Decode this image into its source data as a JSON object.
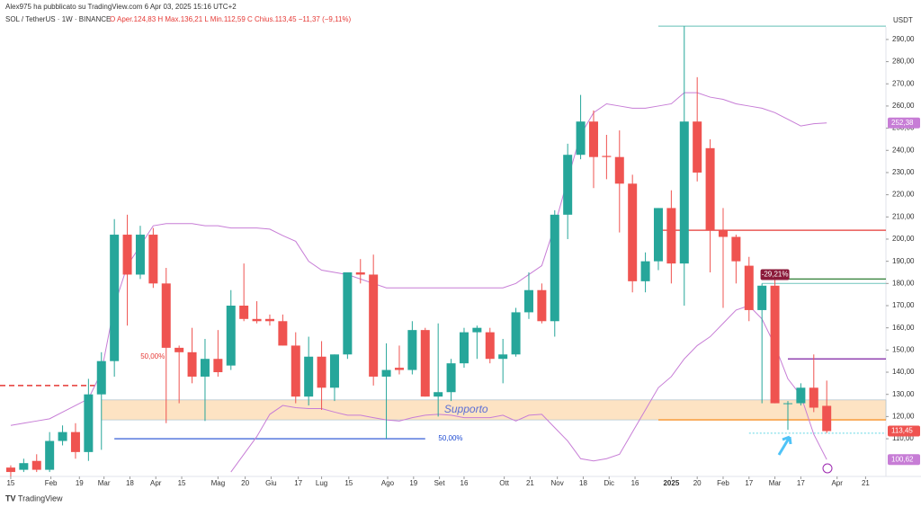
{
  "chart_data": {
    "type": "candlestick",
    "title": "Alex975 ha pubblicato su TradingView.com 6 Apr 03, 2025 15:16 UTC+2",
    "subtitle": "SOL / TetherUS · 1W · BINANCE",
    "info": "O Aper.124,83  H Max.136,21  L Min.112,59  C Chius.113,45  −11,37 (−9,11%)",
    "currency": "USDT",
    "brand": "TradingView",
    "up_color": "#26a69a",
    "down_color": "#ef5350",
    "candles": {
      "open": [
        97,
        96,
        100,
        96,
        109,
        113,
        104,
        130,
        145,
        202,
        184,
        202,
        180,
        151,
        149,
        138,
        146,
        143,
        170,
        164,
        164,
        163,
        152,
        129,
        147,
        133,
        148,
        185,
        184,
        138,
        142,
        141,
        159,
        129,
        131,
        144,
        158,
        158,
        146,
        148,
        167,
        177,
        163,
        211,
        238,
        253,
        237.5,
        237,
        225,
        181,
        190,
        214,
        189,
        253,
        241,
        204,
        201,
        188,
        168,
        179,
        126,
        126,
        133,
        124.83
      ],
      "high": [
        98,
        101,
        103,
        113,
        116,
        117,
        137,
        149,
        209,
        211,
        206,
        205,
        187,
        152,
        160,
        155,
        159,
        177,
        189,
        172,
        166,
        166,
        158,
        156,
        154,
        148,
        185,
        191,
        193,
        153,
        152,
        163,
        160,
        162,
        146,
        160,
        161,
        160,
        155,
        169,
        185,
        180,
        213,
        243,
        265,
        258,
        247,
        249,
        229,
        194,
        214,
        222,
        296,
        273,
        245,
        214,
        202,
        192,
        180,
        183,
        127,
        135,
        148,
        136.21
      ],
      "low": [
        93,
        95,
        95,
        95,
        107,
        101,
        100,
        105,
        138,
        161,
        182,
        178,
        117,
        126,
        135,
        118,
        138,
        141,
        163,
        162,
        161,
        152,
        126,
        125,
        123,
        127,
        146,
        180,
        134,
        110,
        139,
        139,
        129,
        120,
        127,
        142,
        146,
        144,
        135,
        147,
        164,
        162,
        156,
        200,
        236,
        223,
        227,
        203,
        176,
        176,
        186,
        180,
        170,
        226,
        185,
        169,
        180,
        163,
        126,
        126,
        114,
        125,
        122,
        112.59
      ],
      "close": [
        95,
        99,
        96,
        109,
        113,
        104,
        130,
        145,
        202,
        184,
        202,
        180,
        151,
        149,
        138,
        146,
        140,
        170,
        164,
        163,
        163,
        152,
        129,
        147,
        133,
        148,
        185,
        184,
        138,
        141,
        141,
        159,
        129,
        131,
        144,
        158,
        160,
        146,
        148,
        167,
        177,
        163,
        211,
        238,
        253,
        237,
        237,
        225,
        181,
        190,
        214,
        189,
        253,
        230,
        204,
        201,
        190,
        168,
        179,
        126,
        126,
        133,
        124,
        113.45
      ]
    },
    "last_label": "113,45",
    "bands": [
      {
        "color": "#c77dd6",
        "last_label": "252,38",
        "values": [
          116,
          117,
          118,
          119,
          122,
          125,
          128,
          140,
          170,
          188,
          197,
          206,
          207,
          207,
          207,
          206,
          206,
          205,
          205,
          205,
          204.5,
          201.6,
          199,
          190,
          186,
          185,
          184,
          182,
          180,
          178,
          178,
          178,
          178,
          178,
          178,
          178,
          178,
          178,
          178,
          180,
          184,
          188,
          206,
          227,
          247,
          257,
          261,
          260,
          259,
          259,
          260,
          261,
          266,
          266,
          264,
          263,
          261,
          260,
          259,
          257,
          254,
          251,
          252,
          252.38
        ]
      },
      {
        "color": "#c77dd6",
        "last_label": "100,62",
        "values": [
          null,
          null,
          null,
          null,
          null,
          null,
          null,
          null,
          null,
          null,
          null,
          null,
          null,
          null,
          null,
          null,
          null,
          95,
          103,
          111,
          121,
          125,
          124,
          123.6,
          123.6,
          122,
          120.6,
          120.6,
          119.5,
          118.5,
          118,
          119.5,
          120.6,
          121,
          120.6,
          119.5,
          119.5,
          119.5,
          120.6,
          118,
          120.6,
          121,
          115,
          109,
          101,
          100,
          101,
          103,
          113,
          123,
          133,
          138,
          146,
          152,
          156,
          162,
          168,
          170,
          164,
          152,
          137,
          129.5,
          112,
          100.62
        ]
      }
    ],
    "levels": [
      {
        "value": 134,
        "color": "#e53935",
        "style": "dashed",
        "x_range": [
          -0.83,
          7
        ]
      },
      {
        "value": 110,
        "color": "#1e4bd2",
        "style": "solid",
        "x_range": [
          8,
          32
        ]
      },
      {
        "value": 296,
        "color": "#80cbc4",
        "style": "solid",
        "x_range": [
          50,
          67.57
        ]
      },
      {
        "value": 204,
        "color": "#e53935",
        "style": "solid",
        "x_range": [
          50,
          67.57
        ]
      },
      {
        "value": 182,
        "color": "#2e7d32",
        "style": "solid",
        "x_range": [
          58,
          67.57
        ]
      },
      {
        "value": 180,
        "color": "#80cbc4",
        "style": "solid",
        "x_range": [
          58,
          67.57
        ]
      },
      {
        "value": 146,
        "color": "#7b1fa2",
        "style": "solid",
        "x_range": [
          60,
          67.57
        ]
      },
      {
        "value": 118.5,
        "color": "#f57c00",
        "style": "solid",
        "x_range": [
          50,
          67.57
        ]
      },
      {
        "value": 112.5,
        "color": "#80deea",
        "style": "dotted",
        "x_range": [
          57,
          67.57
        ]
      }
    ],
    "zone": {
      "label": "Supporto",
      "range": [
        118.5,
        127.5
      ],
      "x_range": [
        7,
        67.57
      ],
      "color": "#fde3c3"
    },
    "annotations": [
      {
        "text": "50,00%",
        "x": 9.6,
        "y": 147,
        "color": "#e53935"
      },
      {
        "text": "50,00%",
        "x": 32.6,
        "y": 110,
        "color": "#1e4bd2"
      },
      {
        "text": "-29,21%",
        "x": 59,
        "y": 184,
        "color": "#ffffff",
        "box": "#8b1a3a"
      }
    ],
    "xlim": [
      -0.83,
      67.57
    ],
    "ylim": [
      93,
      300.5
    ],
    "xticks": [
      {
        "value": 0,
        "label": "15"
      },
      {
        "value": 3.1,
        "label": "Feb"
      },
      {
        "value": 5.3,
        "label": "19"
      },
      {
        "value": 7.2,
        "label": "Mar"
      },
      {
        "value": 9.2,
        "label": "18"
      },
      {
        "value": 11.2,
        "label": "Apr"
      },
      {
        "value": 13.2,
        "label": "15"
      },
      {
        "value": 16,
        "label": "Mag"
      },
      {
        "value": 18.1,
        "label": "20"
      },
      {
        "value": 20.1,
        "label": "Giu"
      },
      {
        "value": 22.2,
        "label": "17"
      },
      {
        "value": 24,
        "label": "Lug"
      },
      {
        "value": 26.1,
        "label": "15"
      },
      {
        "value": 29.1,
        "label": "Ago"
      },
      {
        "value": 31.1,
        "label": "19"
      },
      {
        "value": 33.1,
        "label": "Set"
      },
      {
        "value": 35,
        "label": "16"
      },
      {
        "value": 38.1,
        "label": "Ott"
      },
      {
        "value": 40.1,
        "label": "21"
      },
      {
        "value": 42.2,
        "label": "Nov"
      },
      {
        "value": 44.2,
        "label": "18"
      },
      {
        "value": 46.2,
        "label": "Dic"
      },
      {
        "value": 48.2,
        "label": "16"
      },
      {
        "value": 51,
        "label": "2025"
      },
      {
        "value": 53,
        "label": "20"
      },
      {
        "value": 55,
        "label": "Feb"
      },
      {
        "value": 57,
        "label": "17"
      },
      {
        "value": 59,
        "label": "Mar"
      },
      {
        "value": 61,
        "label": "17"
      },
      {
        "value": 63.8,
        "label": "Apr"
      },
      {
        "value": 66,
        "label": "21"
      }
    ],
    "yticks": [
      {
        "value": 110,
        "label": "110,00"
      },
      {
        "value": 120,
        "label": "120,00"
      },
      {
        "value": 130,
        "label": "130,00"
      },
      {
        "value": 140,
        "label": "140,00"
      },
      {
        "value": 150,
        "label": "150,00"
      },
      {
        "value": 160,
        "label": "160,00"
      },
      {
        "value": 170,
        "label": "170,00"
      },
      {
        "value": 180,
        "label": "180,00"
      },
      {
        "value": 190,
        "label": "190,00"
      },
      {
        "value": 200,
        "label": "200,00"
      },
      {
        "value": 210,
        "label": "210,00"
      },
      {
        "value": 220,
        "label": "220,00"
      },
      {
        "value": 230,
        "label": "230,00"
      },
      {
        "value": 240,
        "label": "240,00"
      },
      {
        "value": 250,
        "label": "250,00"
      },
      {
        "value": 260,
        "label": "260,00"
      },
      {
        "value": 270,
        "label": "270,00"
      },
      {
        "value": 280,
        "label": "280,00"
      },
      {
        "value": 290,
        "label": "290,00"
      }
    ]
  }
}
